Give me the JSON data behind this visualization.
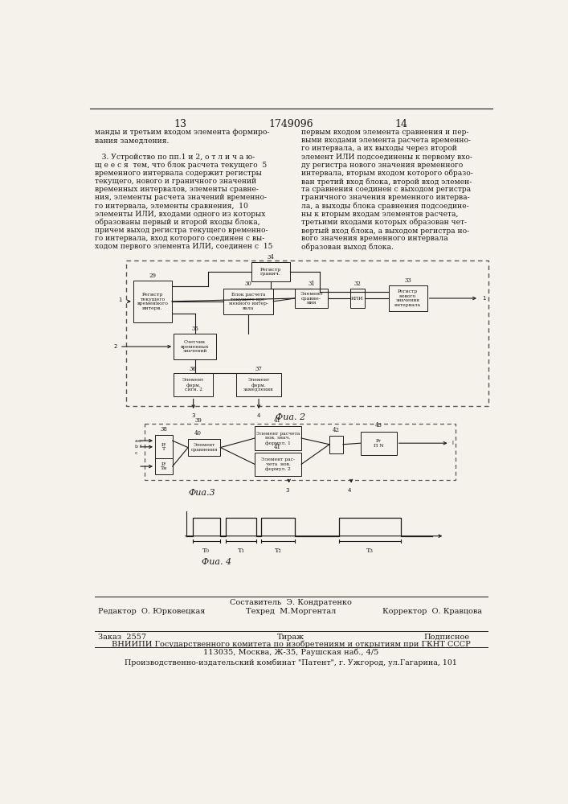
{
  "page_number_left": "13",
  "page_number_center": "1749096",
  "page_number_right": "14",
  "col_left_text": [
    "манды и третьим входом элемента формиро-",
    "вания замедления.",
    "",
    "   3. Устройство по пп.1 и 2, о т л и ч а ю-",
    "щ е е с я  тем, что блок расчета текущего  5",
    "временного интервала содержит регистры",
    "текущего, нового и граничного значений",
    "временных интервалов, элементы сравне-",
    "ния, элементы расчета значений временно-",
    "го интервала, элементы сравнения,  10",
    "элементы ИЛИ, входами одного из которых",
    "образованы первый и второй входы блока,",
    "причем выход регистра текущего временно-",
    "го интервала, вход которого соединен с вы-",
    "ходом первого элемента ИЛИ, соединен с  15"
  ],
  "col_right_text": [
    "первым входом элемента сравнения и пер-",
    "выми входами элемента расчета временно-",
    "го интервала, а их выходы через второй",
    "элемент ИЛИ подсоединены к первому вхо-",
    "ду регистра нового значения временного",
    "интервала, вторым входом которого образо-",
    "ван третий вход блока, второй вход элемен-",
    "та сравнения соединен с выходом регистра",
    "граничного значения временного интерва-",
    "ла, а выходы блока сравнения подсоедине-",
    "ны к вторым входам элементов расчета,",
    "третьими входами которых образован чет-",
    "вертый вход блока, а выходом регистра но-",
    "вого значения временного интервала",
    "образован выход блока."
  ],
  "fig2_label": "Фиа. 2",
  "fig3_label": "Фиа.3",
  "fig4_label": "Фиа. 4",
  "footer_line1_col2": "Составитель  Э. Кондратенко",
  "footer_line1_col1": "Редактор  О. Юрковецкая",
  "footer_line1_col3": "Корректор  О. Кравцова",
  "footer_line1b_col2": "Техред  М.Моргентал",
  "footer_order": "Заказ  2557",
  "footer_tirazh": "Тираж",
  "footer_podpisnoe": "Подписное",
  "footer_vniipи": "ВНИИПИ Государственного комитета по изобретениям и открытиям при ГКНТ СССР",
  "footer_address": "113035, Москва, Ж-35, Раушская наб., 4/5",
  "footer_factory": "Производственно-издательский комбинат \"Патент\", г. Ужгород, ул.Гагарина, 101",
  "bg_color": "#f5f2ec",
  "text_color": "#1a1a1a"
}
